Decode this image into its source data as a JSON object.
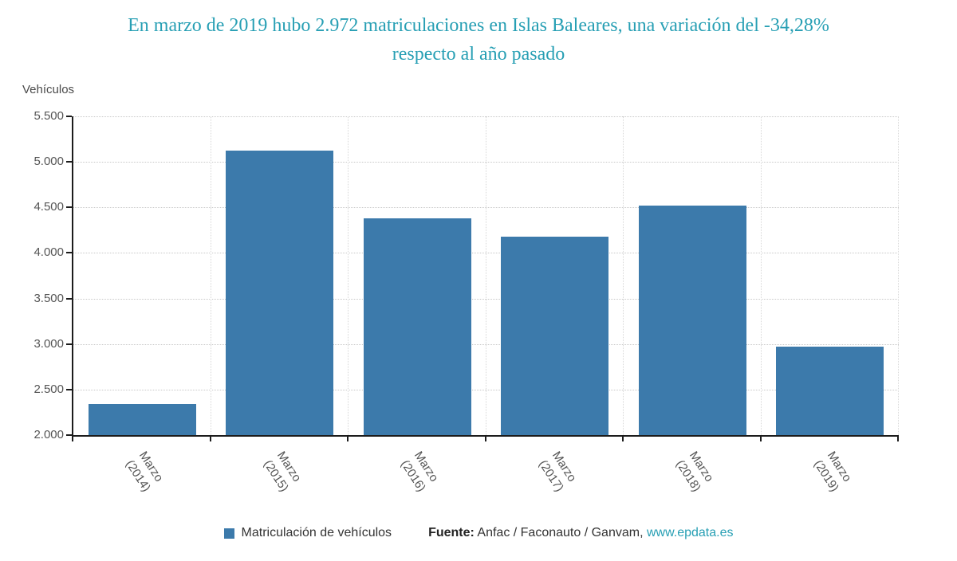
{
  "title": {
    "line1": "En marzo de 2019 hubo 2.972 matriculaciones en Islas Baleares, una variación del -34,28%",
    "line2": "respecto al año pasado"
  },
  "chart_data": {
    "type": "bar",
    "title": "En marzo de 2019 hubo 2.972 matriculaciones en Islas Baleares, una variación del -34,28% respecto al año pasado",
    "xlabel": "",
    "ylabel": "Vehículos",
    "categories": [
      "Marzo (2014)",
      "Marzo (2015)",
      "Marzo (2016)",
      "Marzo (2017)",
      "Marzo (2018)",
      "Marzo (2019)"
    ],
    "values": [
      2340,
      5120,
      4380,
      4180,
      4522,
      2972
    ],
    "series_name": "Matriculación de vehículos",
    "ylim": [
      2000,
      5500
    ],
    "ytick_step": 500,
    "ytick_labels": [
      "2.000",
      "2.500",
      "3.000",
      "3.500",
      "4.000",
      "4.500",
      "5.000",
      "5.500"
    ],
    "bar_color": "#3c7aab",
    "grid": true,
    "legend_position": "bottom"
  },
  "footer": {
    "legend_label": "Matriculación de vehículos",
    "source_label": "Fuente:",
    "source_text": "Anfac / Faconauto / Ganvam,",
    "source_link": "www.epdata.es"
  },
  "colors": {
    "title_teal": "#279fb4",
    "link_teal": "#279fb4",
    "bar_blue": "#3c7aab",
    "axis": "#1c1c1c",
    "tick_text": "#555555"
  }
}
